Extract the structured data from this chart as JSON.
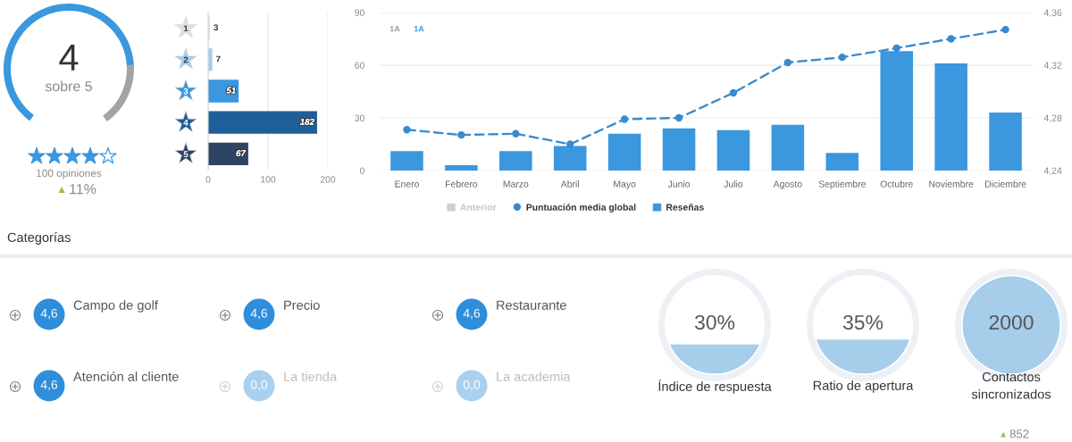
{
  "chart_data": [
    {
      "type": "donut",
      "categories": [
        null,
        null
      ],
      "values": [
        80,
        20
      ],
      "colors": [
        "#3b97de",
        "#a3a3a3"
      ],
      "annotations": [
        "4",
        "sobre 5",
        "100 opiniones",
        "▲11%"
      ]
    },
    {
      "type": "bar",
      "orientation": "horizontal",
      "categories": [
        "1",
        "2",
        "3",
        "4",
        "5"
      ],
      "values": [
        3,
        7,
        51,
        182,
        67
      ],
      "colors": [
        "#e0e0e0",
        "#a9cdea",
        "#3b97de",
        "#1e5f99",
        "#2d4562"
      ],
      "xlim": [
        0,
        200
      ],
      "xticks": [
        0,
        100,
        200
      ],
      "grid": "x",
      "data_labels": true
    },
    {
      "type": "bar",
      "categories": [
        "Enero",
        "Febrero",
        "Marzo",
        "Abril",
        "Mayo",
        "Junio",
        "Julio",
        "Agosto",
        "Septiembre",
        "Octubre",
        "Noviembre",
        "Diciembre"
      ],
      "series": [
        {
          "name": "Anterior",
          "color": "#cfcfcf",
          "values": [
            null,
            null,
            null,
            null,
            null,
            null,
            null,
            null,
            null,
            null,
            null,
            null
          ]
        },
        {
          "name": "Puntuación media global",
          "type": "line",
          "axis": "y2",
          "color": "#3a8ad0",
          "values": [
            4.271,
            4.267,
            4.268,
            4.26,
            4.279,
            4.28,
            4.299,
            4.322,
            4.326,
            4.333,
            4.34,
            4.347
          ]
        },
        {
          "name": "Reseñas",
          "color": "#3b97de",
          "values": [
            11,
            3,
            11,
            14,
            21,
            24,
            23,
            26,
            10,
            68,
            61,
            33
          ]
        }
      ],
      "ylim": [
        0,
        90
      ],
      "yticks": [
        0,
        30,
        60,
        90
      ],
      "y2lim": [
        4.24,
        4.36
      ],
      "y2ticks": [
        {
          "value": 4.24,
          "label": "4,24"
        },
        {
          "value": 4.28,
          "label": "4,28"
        },
        {
          "value": 4.32,
          "label": "4,32"
        },
        {
          "value": 4.36,
          "label": "4,36"
        }
      ],
      "grid": "y",
      "legend": "bottom",
      "marker": "circle",
      "line_style": "dashed",
      "annotations": [
        "1A",
        "1A"
      ]
    },
    {
      "type": "other",
      "title": "Categorías",
      "categories": [
        "Campo de golf",
        "Precio",
        "Restaurante",
        "Atención al cliente",
        "La tienda",
        "La academia"
      ],
      "values": [
        4.6,
        4.6,
        4.6,
        4.6,
        0,
        0
      ],
      "value_labels": [
        "4,6",
        "4,6",
        "4,6",
        "4,6",
        "0,0",
        "0,0"
      ],
      "colors": [
        "#2f8edb",
        "#2f8edb",
        "#2f8edb",
        "#2f8edb",
        "#a9d0ef",
        "#a9d0ef"
      ]
    },
    {
      "type": "other",
      "categories": [
        "Índice de respuesta"
      ],
      "values": [
        30
      ],
      "value_labels": [
        "30%"
      ],
      "colors": [
        "#a6cdea"
      ]
    },
    {
      "type": "other",
      "categories": [
        "Ratio de apertura"
      ],
      "values": [
        35
      ],
      "value_labels": [
        "35%"
      ],
      "colors": [
        "#a6cdea"
      ]
    },
    {
      "type": "other",
      "categories": [
        "Contactos sincronizados"
      ],
      "values": [
        2000
      ],
      "value_labels": [
        "2000"
      ],
      "colors": [
        "#a6cdea"
      ],
      "annotations": [
        "▲852"
      ]
    }
  ]
}
